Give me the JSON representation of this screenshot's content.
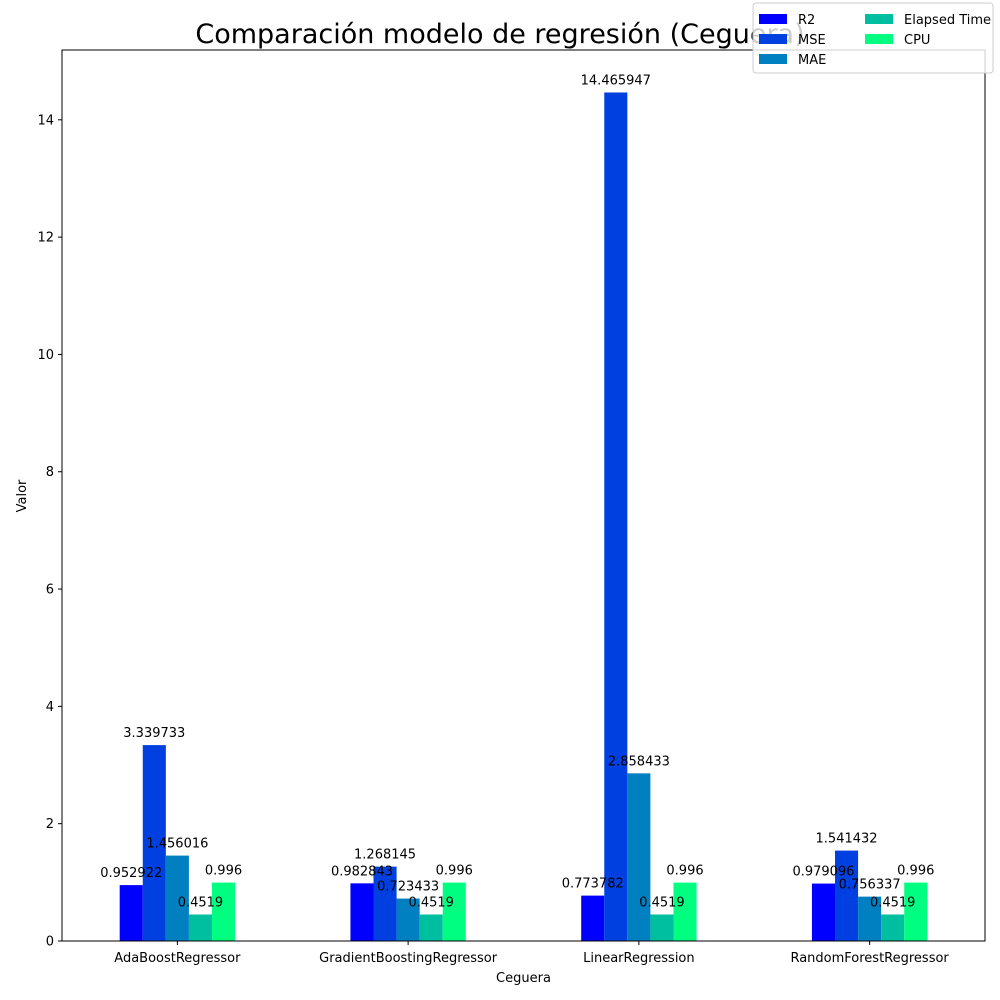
{
  "chart_data": {
    "type": "bar",
    "title": "Comparación modelo de regresión (Ceguera)",
    "xlabel": "Ceguera",
    "ylabel": "Valor",
    "ylim": [
      0,
      15.19
    ],
    "yticks": [
      0,
      2,
      4,
      6,
      8,
      10,
      12,
      14
    ],
    "grid": false,
    "legend_position": "top-right",
    "categories": [
      "AdaBoostRegressor",
      "GradientBoostingRegressor",
      "LinearRegression",
      "RandomForestRegressor"
    ],
    "series": [
      {
        "name": "R2",
        "color": "#0000ff",
        "values": [
          0.952922,
          0.982843,
          0.773782,
          0.979096
        ],
        "labels": [
          "0.952922",
          "0.982843",
          "0.773782",
          "0.979096"
        ]
      },
      {
        "name": "MSE",
        "color": "#0040e0",
        "values": [
          3.339733,
          1.268145,
          14.465947,
          1.541432
        ],
        "labels": [
          "3.339733",
          "1.268145",
          "14.465947",
          "1.541432"
        ]
      },
      {
        "name": "MAE",
        "color": "#0080c0",
        "values": [
          1.456016,
          0.723433,
          2.858433,
          0.756337
        ],
        "labels": [
          "1.456016",
          "0.723433",
          "2.858433",
          "0.756337"
        ]
      },
      {
        "name": "Elapsed Time",
        "color": "#00bfa0",
        "values": [
          0.4519,
          0.4519,
          0.4519,
          0.4519
        ],
        "labels": [
          "0.4519",
          "0.4519",
          "0.4519",
          "0.4519"
        ]
      },
      {
        "name": "CPU",
        "color": "#00ff80",
        "values": [
          0.996,
          0.996,
          0.996,
          0.996
        ],
        "labels": [
          "0.996",
          "0.996",
          "0.996",
          "0.996"
        ]
      }
    ]
  }
}
